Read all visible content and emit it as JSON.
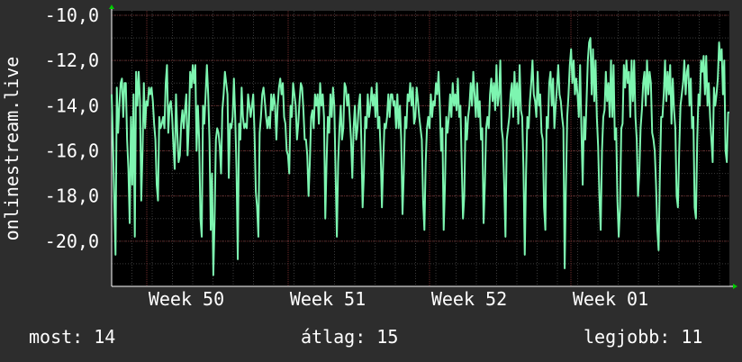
{
  "chart_data": {
    "type": "line",
    "title": "",
    "ylabel": "onlinestream.live",
    "xlabel": "",
    "ylim": [
      -22.0,
      -9.8
    ],
    "y_ticks": [
      -10,
      -12,
      -14,
      -16,
      -18,
      -20
    ],
    "y_tick_labels": [
      "-10,0",
      "-12,0",
      "-14,0",
      "-16,0",
      "-18,0",
      "-20,0"
    ],
    "x_labels": [
      "Week 50",
      "Week 51",
      "Week 52",
      "Week 01"
    ],
    "grid": true,
    "series": [
      {
        "name": "",
        "color": "#7df5b0",
        "values": [
          -13.5,
          -15.5,
          -18.2,
          -20.6,
          -13.2,
          -15.2,
          -14.0,
          -13.0,
          -12.8,
          -14.5,
          -13.0,
          -13.0,
          -15.5,
          -16.8,
          -19.2,
          -14.5,
          -17.5,
          -13.5,
          -19.8,
          -12.5,
          -14.0,
          -12.5,
          -13.8,
          -18.2,
          -16.0,
          -13.0,
          -15.0,
          -13.8,
          -14.0,
          -13.2,
          -13.5,
          -13.2,
          -13.8,
          -14.8,
          -15.5,
          -17.5,
          -18.2,
          -14.5,
          -15.0,
          -14.8,
          -14.5,
          -15.0,
          -13.0,
          -12.2,
          -15.2,
          -14.0,
          -13.8,
          -14.5,
          -15.8,
          -16.8,
          -13.5,
          -15.2,
          -16.5,
          -16.2,
          -14.8,
          -14.2,
          -15.0,
          -14.2,
          -13.5,
          -16.2,
          -14.8,
          -12.5,
          -13.2,
          -12.2,
          -13.0,
          -12.2,
          -16.0,
          -14.0,
          -15.5,
          -19.0,
          -19.8,
          -14.0,
          -14.8,
          -13.5,
          -12.2,
          -13.5,
          -15.5,
          -19.5,
          -17.0,
          -21.5,
          -19.0,
          -15.5,
          -15.0,
          -15.2,
          -15.8,
          -17.0,
          -14.2,
          -13.5,
          -12.5,
          -13.0,
          -13.5,
          -17.2,
          -14.8,
          -15.0,
          -14.5,
          -12.8,
          -14.5,
          -16.8,
          -20.8,
          -14.8,
          -15.5,
          -13.2,
          -14.5,
          -15.0,
          -14.8,
          -15.0,
          -13.5,
          -14.0,
          -14.5,
          -14.0,
          -13.5,
          -15.2,
          -17.8,
          -18.5,
          -19.8,
          -15.2,
          -14.5,
          -13.5,
          -13.2,
          -13.8,
          -14.5,
          -15.0,
          -14.5,
          -15.0,
          -13.5,
          -14.2,
          -13.5,
          -14.0,
          -15.5,
          -14.0,
          -13.2,
          -12.8,
          -13.5,
          -13.0,
          -14.5,
          -14.8,
          -16.0,
          -16.2,
          -17.0,
          -14.0,
          -14.5,
          -13.0,
          -13.5,
          -14.0,
          -15.5,
          -14.8,
          -13.8,
          -13.0,
          -13.2,
          -14.2,
          -15.5,
          -15.5,
          -16.2,
          -18.0,
          -16.5,
          -14.5,
          -14.2,
          -15.0,
          -13.5,
          -14.0,
          -13.5,
          -14.8,
          -13.0,
          -14.0,
          -13.5,
          -14.5,
          -19.0,
          -16.5,
          -14.5,
          -15.2,
          -13.5,
          -14.5,
          -13.2,
          -14.0,
          -17.0,
          -19.8,
          -16.5,
          -15.0,
          -14.0,
          -15.5,
          -15.0,
          -13.0,
          -13.2,
          -14.0,
          -13.5,
          -14.5,
          -15.5,
          -17.2,
          -15.0,
          -14.0,
          -15.5,
          -15.0,
          -14.0,
          -13.5,
          -15.5,
          -18.5,
          -17.0,
          -14.5,
          -15.0,
          -13.5,
          -14.5,
          -14.0,
          -13.2,
          -14.0,
          -13.5,
          -14.5,
          -13.0,
          -15.0,
          -14.5,
          -16.0,
          -18.5,
          -16.5,
          -14.8,
          -15.0,
          -14.5,
          -13.5,
          -14.5,
          -13.5,
          -13.5,
          -14.0,
          -13.8,
          -15.0,
          -13.5,
          -15.0,
          -14.0,
          -15.5,
          -18.8,
          -17.0,
          -14.5,
          -15.0,
          -13.5,
          -13.8,
          -13.0,
          -14.0,
          -13.2,
          -14.8,
          -14.5,
          -13.2,
          -13.8,
          -14.5,
          -15.0,
          -15.5,
          -18.2,
          -19.5,
          -16.5,
          -15.0,
          -14.5,
          -15.0,
          -13.5,
          -14.5,
          -13.8,
          -14.0,
          -13.0,
          -13.5,
          -12.5,
          -14.0,
          -16.0,
          -15.0,
          -19.5,
          -17.5,
          -14.5,
          -15.2,
          -14.5,
          -13.5,
          -14.5,
          -13.0,
          -14.0,
          -13.5,
          -14.2,
          -12.8,
          -14.5,
          -14.0,
          -16.5,
          -19.0,
          -18.0,
          -14.5,
          -15.5,
          -14.5,
          -14.0,
          -13.0,
          -14.0,
          -12.5,
          -13.5,
          -14.5,
          -13.0,
          -14.5,
          -13.8,
          -15.5,
          -15.0,
          -19.2,
          -17.5,
          -15.0,
          -14.5,
          -15.0,
          -13.5,
          -12.8,
          -13.8,
          -13.0,
          -14.2,
          -12.2,
          -14.0,
          -13.5,
          -12.0,
          -15.0,
          -15.5,
          -17.5,
          -19.8,
          -15.5,
          -15.0,
          -14.5,
          -13.5,
          -13.0,
          -14.5,
          -12.5,
          -14.0,
          -13.0,
          -14.8,
          -12.2,
          -14.2,
          -14.5,
          -16.8,
          -20.6,
          -17.0,
          -14.5,
          -15.0,
          -13.8,
          -13.0,
          -12.0,
          -13.5,
          -13.8,
          -14.5,
          -12.5,
          -14.0,
          -13.5,
          -15.2,
          -15.5,
          -18.5,
          -19.5,
          -14.5,
          -15.0,
          -13.0,
          -12.5,
          -14.0,
          -12.8,
          -15.0,
          -14.0,
          -13.2,
          -12.2,
          -13.5,
          -13.8,
          -14.5,
          -15.0,
          -21.2,
          -17.5,
          -14.5,
          -13.5,
          -12.2,
          -11.5,
          -13.0,
          -12.0,
          -13.5,
          -12.8,
          -13.5,
          -14.5,
          -12.2,
          -15.0,
          -17.5,
          -14.5,
          -15.5,
          -13.8,
          -12.0,
          -11.2,
          -11.0,
          -13.5,
          -11.5,
          -13.8,
          -12.0,
          -14.5,
          -15.8,
          -18.0,
          -19.5,
          -16.0,
          -14.5,
          -14.2,
          -12.5,
          -13.8,
          -13.0,
          -14.5,
          -12.0,
          -14.5,
          -12.2,
          -15.5,
          -15.0,
          -18.2,
          -19.8,
          -18.5,
          -15.0,
          -14.8,
          -12.2,
          -13.2,
          -12.0,
          -13.0,
          -12.5,
          -14.5,
          -12.0,
          -13.8,
          -12.0,
          -14.5,
          -15.5,
          -18.0,
          -17.0,
          -15.0,
          -14.2,
          -13.0,
          -12.5,
          -14.0,
          -12.0,
          -13.5,
          -12.5,
          -13.0,
          -15.2,
          -15.5,
          -16.0,
          -17.5,
          -19.5,
          -20.4,
          -17.0,
          -14.5,
          -14.5,
          -13.5,
          -12.0,
          -13.8,
          -12.5,
          -13.5,
          -12.2,
          -14.8,
          -12.8,
          -14.2,
          -15.0,
          -18.0,
          -18.5,
          -16.0,
          -14.0,
          -13.5,
          -13.0,
          -12.0,
          -13.5,
          -12.5,
          -12.2,
          -14.0,
          -12.8,
          -15.0,
          -14.5,
          -18.5,
          -19.0,
          -15.5,
          -13.5,
          -14.0,
          -12.0,
          -12.5,
          -11.8,
          -13.5,
          -11.8,
          -14.0,
          -13.0,
          -14.5,
          -15.5,
          -16.5,
          -13.2,
          -14.0,
          -13.5,
          -12.8,
          -11.2,
          -12.0,
          -11.5,
          -13.5,
          -12.0,
          -16.0,
          -16.5,
          -14.3,
          -14.3
        ]
      }
    ]
  },
  "legend": {
    "current_label": "most:",
    "current_value": "14",
    "average_label": "átlag:",
    "average_value": "15",
    "best_label": "legjobb:",
    "best_value": "11"
  },
  "colors": {
    "background": "#2d2d2d",
    "plot_background": "#000000",
    "grid_minor": "#3a3a3a",
    "grid_major": "#6b2a2a",
    "axis": "#ffffff",
    "arrow": "#00cc00",
    "line": "#7df5b0",
    "text": "#ffffff"
  }
}
